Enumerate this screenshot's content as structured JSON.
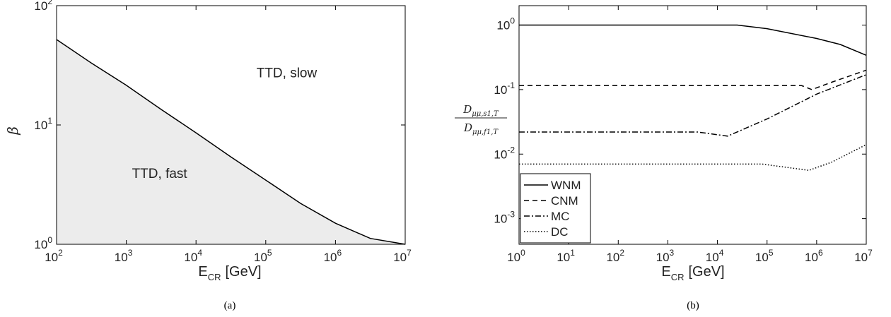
{
  "chart_data": [
    {
      "panel": "(a)",
      "type": "area",
      "xlabel_main": "E",
      "xlabel_sub": "CR",
      "xlabel_unit": "[GeV]",
      "ylabel": "β",
      "xscale": "log",
      "yscale": "log",
      "xlim": [
        100,
        10000000
      ],
      "ylim": [
        1,
        100
      ],
      "x_tick_exponents": [
        "2",
        "3",
        "4",
        "5",
        "6",
        "7"
      ],
      "y_tick_exponents": [
        "0",
        "1",
        "2"
      ],
      "tick_base": "10",
      "grid": false,
      "series": [
        {
          "style": "solid",
          "x": [
            100,
            316,
            1000,
            3162,
            10000,
            31623,
            100000,
            316228,
            1000000,
            3162278,
            10000000
          ],
          "y": [
            52,
            33,
            21.5,
            13.5,
            8.6,
            5.4,
            3.45,
            2.2,
            1.5,
            1.12,
            1.0
          ]
        }
      ],
      "fill_below": true,
      "fill_color": "#ececec",
      "annotations": [
        {
          "text": "TTD, slow",
          "x": 200000,
          "y": 25
        },
        {
          "text": "TTD, fast",
          "x": 3000,
          "y": 3.6
        }
      ]
    },
    {
      "panel": "(b)",
      "type": "line",
      "xlabel_main": "E",
      "xlabel_sub": "CR",
      "xlabel_unit": "[GeV]",
      "ylabel_num": "D",
      "ylabel_num_sub": "μμ,s1,T",
      "ylabel_den": "D",
      "ylabel_den_sub": "μμ,f1,T",
      "xscale": "log",
      "yscale": "log",
      "xlim": [
        1,
        10000000
      ],
      "ylim": [
        0.0004,
        2
      ],
      "x_tick_exponents": [
        "0",
        "1",
        "2",
        "3",
        "4",
        "5",
        "6",
        "7"
      ],
      "y_ticks": [
        {
          "value": 1,
          "base": "10",
          "exp": "0"
        },
        {
          "value": 0.1,
          "base": "10",
          "exp": "-1"
        },
        {
          "value": 0.01,
          "base": "10",
          "exp": "-2"
        },
        {
          "value": 0.001,
          "base": "10",
          "exp": "-3"
        }
      ],
      "tick_base": "10",
      "grid": false,
      "legend_position": "bottom-left",
      "series": [
        {
          "name": "WNM",
          "style": "solid",
          "x": [
            1,
            25000,
            100000,
            1000000,
            3000000,
            10000000
          ],
          "y": [
            1.0,
            1.0,
            0.88,
            0.62,
            0.5,
            0.34
          ]
        },
        {
          "name": "CNM",
          "style": "dashed",
          "x": [
            1,
            500000,
            800000,
            2000000,
            10000000
          ],
          "y": [
            0.115,
            0.115,
            0.1,
            0.13,
            0.2
          ]
        },
        {
          "name": "MC",
          "style": "dashdot",
          "x": [
            1,
            4000,
            16000,
            100000,
            1000000,
            10000000
          ],
          "y": [
            0.022,
            0.022,
            0.019,
            0.035,
            0.085,
            0.17
          ]
        },
        {
          "name": "DC",
          "style": "dotted",
          "x": [
            1,
            80000,
            700000,
            2000000,
            10000000
          ],
          "y": [
            0.007,
            0.007,
            0.0056,
            0.0075,
            0.014
          ]
        }
      ]
    }
  ],
  "captions": {
    "a": "(a)",
    "b": "(b)"
  }
}
